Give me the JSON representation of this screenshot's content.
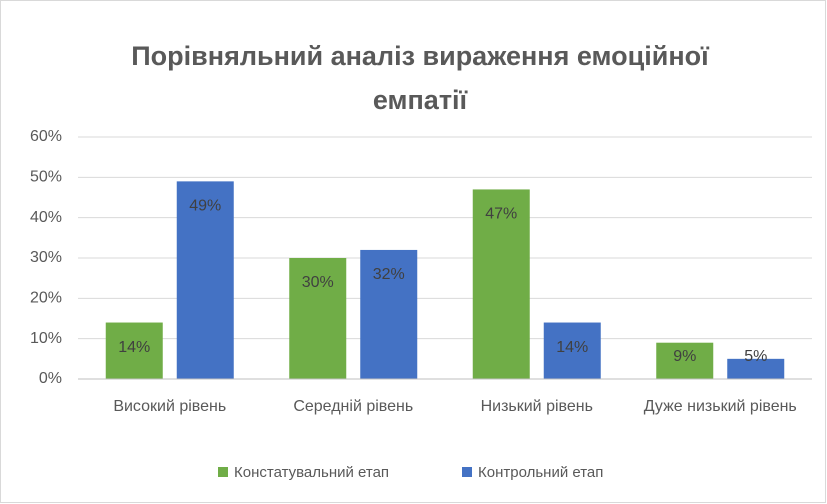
{
  "chart_data": {
    "type": "bar",
    "title": "Порівняльний аналіз вираження емоційної емпатії",
    "categories": [
      "Високий рівень",
      "Середній рівень",
      "Низький рівень",
      "Дуже низький рівень"
    ],
    "series": [
      {
        "name": "Констатувальний етап",
        "color": "#70ad47",
        "values": [
          14,
          30,
          47,
          9
        ],
        "value_labels": [
          "14%",
          "30%",
          "47%",
          "9%"
        ]
      },
      {
        "name": "Контрольний етап",
        "color": "#4472c4",
        "values": [
          49,
          32,
          14,
          5
        ],
        "value_labels": [
          "49%",
          "32%",
          "14%",
          "5%"
        ]
      }
    ],
    "ylim": [
      0,
      60
    ],
    "yticks": [
      {
        "value": 0,
        "label": "0%"
      },
      {
        "value": 10,
        "label": "10%"
      },
      {
        "value": 20,
        "label": "20%"
      },
      {
        "value": 30,
        "label": "30%"
      },
      {
        "value": 40,
        "label": "40%"
      },
      {
        "value": 50,
        "label": "50%"
      },
      {
        "value": 60,
        "label": "60%"
      }
    ],
    "grid": true,
    "legend": "bottom"
  }
}
